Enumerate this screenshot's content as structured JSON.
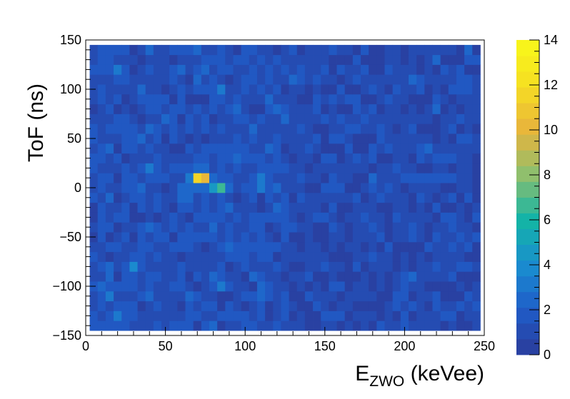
{
  "chart_data": {
    "type": "heatmap",
    "title": "",
    "xlabel": {
      "main": "E",
      "sub": "ZWO",
      "unit": " (keVee)"
    },
    "ylabel": "ToF (ns)",
    "xlim": [
      0,
      250
    ],
    "ylim": [
      -150,
      150
    ],
    "x_ticks": [
      0,
      50,
      100,
      150,
      200,
      250
    ],
    "x_tick_labels": [
      "0",
      "50",
      "100",
      "150",
      "200",
      "250"
    ],
    "y_ticks": [
      -150,
      -100,
      -50,
      0,
      50,
      100,
      150
    ],
    "y_tick_labels": [
      "−150",
      "−100",
      "−50",
      "0",
      "50",
      "100",
      "150"
    ],
    "z_range": [
      0,
      14
    ],
    "z_ticks": [
      0,
      2,
      4,
      6,
      8,
      10,
      12,
      14
    ],
    "z_tick_labels": [
      "0",
      "2",
      "4",
      "6",
      "8",
      "10",
      "12",
      "14"
    ],
    "colorscale": [
      "#2b3b9a",
      "#1f5cc8",
      "#1a8ed0",
      "#14b4a6",
      "#8ebf6e",
      "#e8b43c",
      "#f6df22",
      "#f9f91a"
    ],
    "background_level": 1,
    "peaks": [
      {
        "x": 72,
        "y": 10,
        "value": 13
      },
      {
        "x": 84,
        "y": 0,
        "value": 7
      },
      {
        "x": 110,
        "y": 5,
        "value": 5
      },
      {
        "x": 60,
        "y": -5,
        "value": 4
      },
      {
        "x": 40,
        "y": 20,
        "value": 3
      },
      {
        "x": 30,
        "y": -80,
        "value": 4
      },
      {
        "x": 20,
        "y": -130,
        "value": 3
      },
      {
        "x": 85,
        "y": -100,
        "value": 3
      },
      {
        "x": 20,
        "y": 120,
        "value": 3
      },
      {
        "x": 240,
        "y": 105,
        "value": 3
      }
    ]
  }
}
